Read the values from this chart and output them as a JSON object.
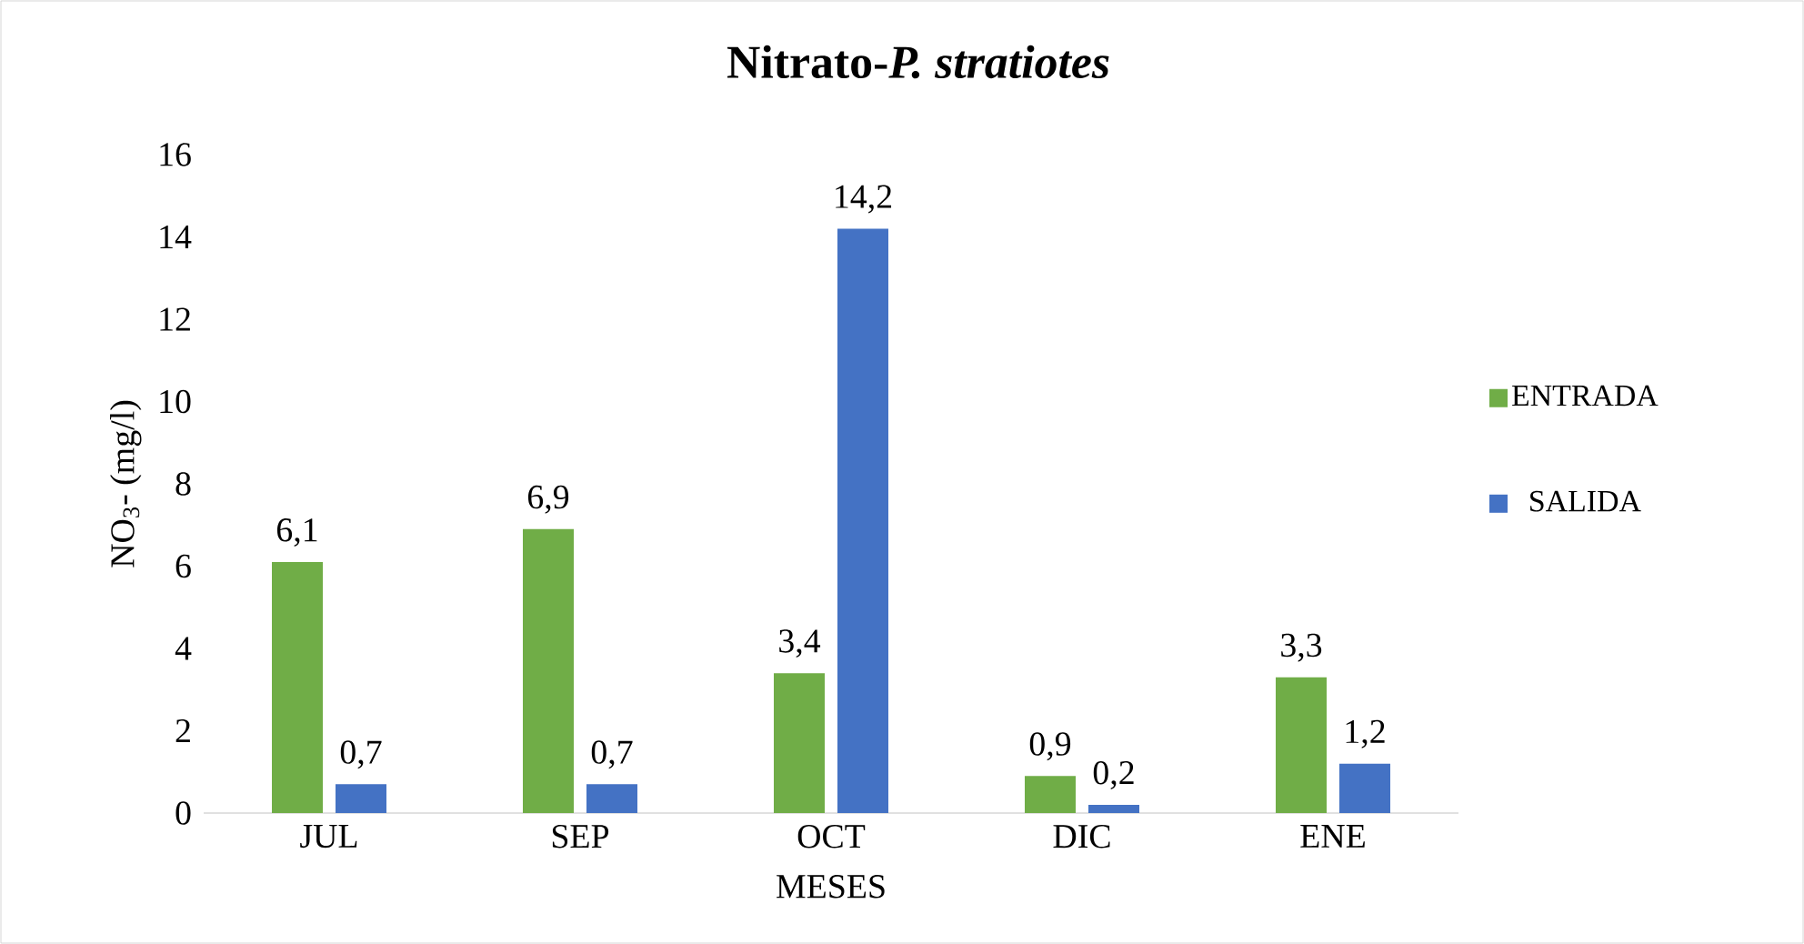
{
  "chart_data": {
    "type": "bar",
    "title": "Nitrato-*P. stratiotes*",
    "xlabel": "MESES",
    "ylabel": "NO$_{3}$- (mg/l)",
    "categories": [
      "JUL",
      "SEP",
      "OCT",
      "DIC",
      "ENE"
    ],
    "series": [
      {
        "name": "ENTRADA",
        "color": "#70ad47",
        "values": [
          6.1,
          6.9,
          3.4,
          0.9,
          3.3
        ],
        "value_labels": [
          "6,1",
          "6,9",
          "3,4",
          "0,9",
          "3,3"
        ]
      },
      {
        "name": "SALIDA",
        "color": "#4472c4",
        "values": [
          0.7,
          0.7,
          14.2,
          0.2,
          1.2
        ],
        "value_labels": [
          "0,7",
          "0,7",
          "14,2",
          "0,2",
          "1,2"
        ]
      }
    ],
    "ylim": [
      0,
      16
    ],
    "yticks": [
      0,
      2,
      4,
      6,
      8,
      10,
      12,
      14,
      16
    ],
    "grid": false,
    "legend": "right"
  }
}
